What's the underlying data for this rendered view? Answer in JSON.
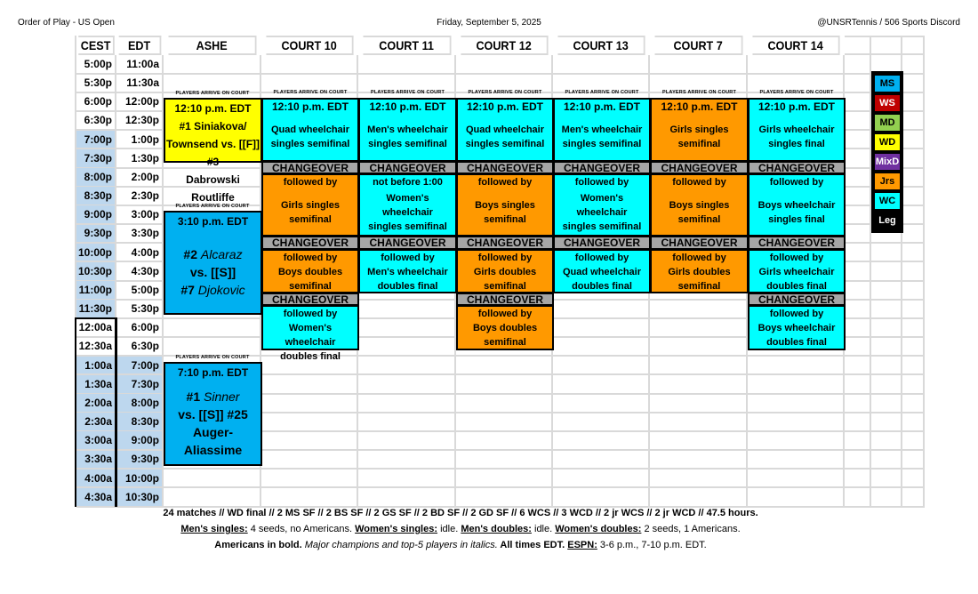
{
  "header": {
    "left": "Order of Play - US Open",
    "center": "Friday, September 5, 2025",
    "right": "@UNSRTennis / 506 Sports Discord"
  },
  "columns": [
    "CEST",
    "EDT",
    "ASHE",
    "COURT 10",
    "COURT 11",
    "COURT 12",
    "COURT 13",
    "COURT 7",
    "COURT 14"
  ],
  "times": {
    "cest": [
      "5:00p",
      "5:30p",
      "6:00p",
      "6:30p",
      "7:00p",
      "7:30p",
      "8:00p",
      "8:30p",
      "9:00p",
      "9:30p",
      "10:00p",
      "10:30p",
      "11:00p",
      "11:30p",
      "12:00a",
      "12:30a",
      "1:00a",
      "1:30a",
      "2:00a",
      "2:30a",
      "3:00a",
      "3:30a",
      "4:00a",
      "4:30a"
    ],
    "edt": [
      "11:00a",
      "11:30a",
      "12:00p",
      "12:30p",
      "1:00p",
      "1:30p",
      "2:00p",
      "2:30p",
      "3:00p",
      "3:30p",
      "4:00p",
      "4:30p",
      "5:00p",
      "5:30p",
      "6:00p",
      "6:30p",
      "7:00p",
      "7:30p",
      "8:00p",
      "8:30p",
      "9:00p",
      "9:30p",
      "10:00p",
      "10:30p"
    ]
  },
  "arrival_label": "PLAYERS ARRIVE ON COURT",
  "changeover_label": "CHANGEOVER",
  "colors": {
    "MS": "#00b0f0",
    "WS": "#c00000",
    "MD": "#92d050",
    "WD": "#ffff00",
    "MixD": "#7030a0",
    "Jrs": "#ff9900",
    "WC": "#00ffff",
    "changeover": "#a6a6a6",
    "shade": "#bdd7ee"
  },
  "ashe": [
    {
      "color": "#ffff00",
      "time": "12:10 p.m. EDT",
      "lines": [
        [
          {
            "t": "#1 Siniakova/"
          }
        ],
        [
          {
            "t": "Townsend vs. [[F]] #3"
          }
        ],
        [
          {
            "t": "Dabrowski Routliffe"
          }
        ]
      ]
    },
    {
      "color": "#00b0f0",
      "time": "3:10 p.m. EDT",
      "lines": [
        [
          {
            "t": "#2 "
          },
          {
            "t": "Alcaraz",
            "i": true
          }
        ],
        [
          {
            "t": "vs. [[S]]"
          }
        ],
        [
          {
            "t": "#7 "
          },
          {
            "t": "Djokovic",
            "i": true
          }
        ]
      ]
    },
    {
      "color": "#00b0f0",
      "time": "7:10 p.m. EDT",
      "lines": [
        [
          {
            "t": "#1 "
          },
          {
            "t": "Sinner",
            "i": true
          }
        ],
        [
          {
            "t": "vs. [[S]] #25"
          }
        ],
        [
          {
            "t": "Auger-Aliassime"
          }
        ]
      ]
    }
  ],
  "courts": [
    {
      "name": "COURT 10",
      "matches": [
        {
          "color": "#00ffff",
          "first": "12:10 p.m. EDT",
          "lines": [
            "Quad wheelchair",
            "singles semifinal"
          ]
        },
        {
          "color": "#ff9900",
          "first": "followed by",
          "lines": [
            "Girls singles",
            "semifinal"
          ]
        },
        {
          "color": "#ff9900",
          "first": "followed by",
          "lines": [
            "Boys doubles",
            "semifinal"
          ]
        },
        {
          "color": "#00ffff",
          "first": "followed by",
          "lines": [
            "Women's wheelchair",
            "doubles final"
          ]
        }
      ]
    },
    {
      "name": "COURT 11",
      "matches": [
        {
          "color": "#00ffff",
          "first": "12:10 p.m. EDT",
          "lines": [
            "Men's wheelchair",
            "singles semifinal"
          ]
        },
        {
          "color": "#00ffff",
          "first": "not before 1:00",
          "lines": [
            "Women's wheelchair",
            "singles semifinal"
          ]
        },
        {
          "color": "#00ffff",
          "first": "followed by",
          "lines": [
            "Men's wheelchair",
            "doubles final"
          ]
        }
      ]
    },
    {
      "name": "COURT 12",
      "matches": [
        {
          "color": "#00ffff",
          "first": "12:10 p.m. EDT",
          "lines": [
            "Quad wheelchair",
            "singles semifinal"
          ]
        },
        {
          "color": "#ff9900",
          "first": "followed by",
          "lines": [
            "Boys singles",
            "semifinal"
          ]
        },
        {
          "color": "#ff9900",
          "first": "followed by",
          "lines": [
            "Girls doubles",
            "semifinal"
          ]
        },
        {
          "color": "#ff9900",
          "first": "followed by",
          "lines": [
            "Boys doubles",
            "semifinal"
          ]
        }
      ]
    },
    {
      "name": "COURT 13",
      "matches": [
        {
          "color": "#00ffff",
          "first": "12:10 p.m. EDT",
          "lines": [
            "Men's wheelchair",
            "singles semifinal"
          ]
        },
        {
          "color": "#00ffff",
          "first": "followed by",
          "lines": [
            "Women's wheelchair",
            "singles semifinal"
          ]
        },
        {
          "color": "#00ffff",
          "first": "followed by",
          "lines": [
            "Quad wheelchair",
            "doubles final"
          ]
        }
      ]
    },
    {
      "name": "COURT 7",
      "matches": [
        {
          "color": "#ff9900",
          "first": "12:10 p.m. EDT",
          "lines": [
            "Girls singles",
            "semifinal"
          ]
        },
        {
          "color": "#ff9900",
          "first": "followed by",
          "lines": [
            "Boys singles",
            "semifinal"
          ]
        },
        {
          "color": "#ff9900",
          "first": "followed by",
          "lines": [
            "Girls doubles",
            "semifinal"
          ]
        }
      ]
    },
    {
      "name": "COURT 14",
      "matches": [
        {
          "color": "#00ffff",
          "first": "12:10 p.m. EDT",
          "lines": [
            "Girls wheelchair",
            "singles final"
          ]
        },
        {
          "color": "#00ffff",
          "first": "followed by",
          "lines": [
            "Boys wheelchair",
            "singles final"
          ]
        },
        {
          "color": "#00ffff",
          "first": "followed by",
          "lines": [
            "Girls wheelchair",
            "doubles final"
          ]
        },
        {
          "color": "#00ffff",
          "first": "followed by",
          "lines": [
            "Boys wheelchair",
            "doubles final"
          ]
        }
      ]
    }
  ],
  "legend": [
    {
      "label": "MS",
      "bg": "#00b0f0",
      "fg": "#000000"
    },
    {
      "label": "WS",
      "bg": "#c00000",
      "fg": "#ffffff"
    },
    {
      "label": "MD",
      "bg": "#92d050",
      "fg": "#000000"
    },
    {
      "label": "WD",
      "bg": "#ffff00",
      "fg": "#000000"
    },
    {
      "label": "MixD",
      "bg": "#7030a0",
      "fg": "#ffffff"
    },
    {
      "label": "Jrs",
      "bg": "#ff9900",
      "fg": "#000000"
    },
    {
      "label": "WC",
      "bg": "#00ffff",
      "fg": "#000000"
    },
    {
      "label": "Leg",
      "bg": "#000000",
      "fg": "#ffffff"
    }
  ],
  "footer": [
    [
      {
        "t": "24 matches // WD final // 2 MS SF // 2 BS SF // 2 GS SF // 2 BD SF // 2 GD SF // 6 WCS // 3 WCD // 2 jr WCS // 2 jr WCD // 47.5 hours."
      }
    ],
    [
      {
        "t": "Men's singles:",
        "s": "u"
      },
      {
        "t": " 4 seeds, no Americans. ",
        "s": "n"
      },
      {
        "t": "Women's singles:",
        "s": "u"
      },
      {
        "t": " idle. ",
        "s": "n"
      },
      {
        "t": "Men's doubles:",
        "s": "u"
      },
      {
        "t": " idle.  ",
        "s": "n"
      },
      {
        "t": "Women's doubles:",
        "s": "u"
      },
      {
        "t": " 2 seeds, 1 Americans.",
        "s": "n"
      }
    ],
    [
      {
        "t": "Americans in bold. "
      },
      {
        "t": "Major champions and top-5 players in italics.",
        "s": "i"
      },
      {
        "t": "  All times EDT. "
      },
      {
        "t": "ESPN:",
        "s": "u"
      },
      {
        "t": " 3-6 p.m., 7-10 p.m. EDT.",
        "s": "n"
      }
    ]
  ]
}
